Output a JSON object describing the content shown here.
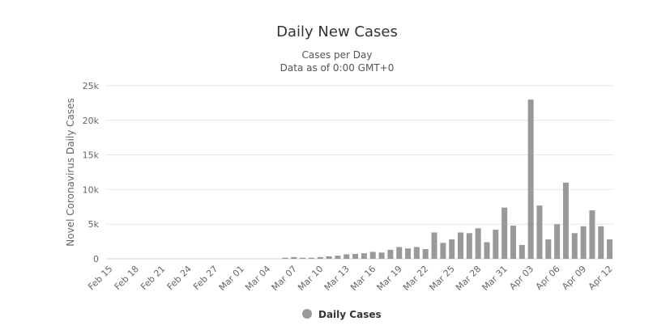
{
  "chart_data": {
    "type": "bar",
    "title": "Daily New Cases",
    "subtitle_line1": "Cases per Day",
    "subtitle_line2": "Data as of 0:00 GMT+0",
    "ylabel": "Novel Coronavirus Daily Cases",
    "xlabel": "",
    "ylim": [
      0,
      25000
    ],
    "yticks": [
      0,
      5000,
      10000,
      15000,
      20000,
      25000
    ],
    "ytick_labels": [
      "0",
      "5k",
      "10k",
      "15k",
      "20k",
      "25k"
    ],
    "grid": true,
    "legend": {
      "position": "bottom-center",
      "label": "Daily Cases"
    },
    "bar_color": "#999999",
    "categories": [
      "Feb 15",
      "Feb 16",
      "Feb 17",
      "Feb 18",
      "Feb 19",
      "Feb 20",
      "Feb 21",
      "Feb 22",
      "Feb 23",
      "Feb 24",
      "Feb 25",
      "Feb 26",
      "Feb 27",
      "Feb 28",
      "Feb 29",
      "Mar 01",
      "Mar 02",
      "Mar 03",
      "Mar 04",
      "Mar 05",
      "Mar 06",
      "Mar 07",
      "Mar 08",
      "Mar 09",
      "Mar 10",
      "Mar 11",
      "Mar 12",
      "Mar 13",
      "Mar 14",
      "Mar 15",
      "Mar 16",
      "Mar 17",
      "Mar 18",
      "Mar 19",
      "Mar 20",
      "Mar 21",
      "Mar 22",
      "Mar 23",
      "Mar 24",
      "Mar 25",
      "Mar 26",
      "Mar 27",
      "Mar 28",
      "Mar 29",
      "Mar 30",
      "Mar 31",
      "Apr 01",
      "Apr 02",
      "Apr 03",
      "Apr 04",
      "Apr 05",
      "Apr 06",
      "Apr 07",
      "Apr 08",
      "Apr 09",
      "Apr 10",
      "Apr 11",
      "Apr 12"
    ],
    "xtick_labels": [
      "Feb 15",
      "Feb 18",
      "Feb 21",
      "Feb 24",
      "Feb 27",
      "Mar 01",
      "Mar 04",
      "Mar 07",
      "Mar 10",
      "Mar 13",
      "Mar 16",
      "Mar 19",
      "Mar 22",
      "Mar 25",
      "Mar 28",
      "Mar 31",
      "Apr 03",
      "Apr 06",
      "Apr 09",
      "Apr 12"
    ],
    "values": [
      0,
      0,
      0,
      0,
      0,
      0,
      0,
      0,
      0,
      0,
      0,
      0,
      0,
      0,
      0,
      0,
      0,
      0,
      0,
      0,
      150,
      250,
      150,
      150,
      250,
      350,
      450,
      650,
      700,
      800,
      1000,
      900,
      1300,
      1700,
      1500,
      1700,
      1400,
      3800,
      2300,
      2800,
      3800,
      3700,
      4400,
      2400,
      4200,
      7400,
      4800,
      2000,
      23000,
      7700,
      2800,
      5000,
      11000,
      3700,
      4700,
      7000,
      4700,
      2800
    ]
  }
}
